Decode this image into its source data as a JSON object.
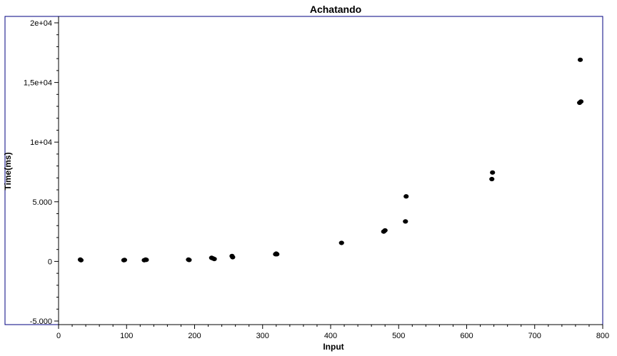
{
  "chart_data": {
    "type": "scatter",
    "title": "Achatando",
    "xlabel": "Input",
    "ylabel": "Time(ms)",
    "xlim": [
      0,
      800
    ],
    "ylim": [
      -5000,
      20000
    ],
    "x_ticks": [
      {
        "value": 0,
        "label": "0"
      },
      {
        "value": 100,
        "label": "100"
      },
      {
        "value": 200,
        "label": "200"
      },
      {
        "value": 300,
        "label": "300"
      },
      {
        "value": 400,
        "label": "400"
      },
      {
        "value": 500,
        "label": "500"
      },
      {
        "value": 600,
        "label": "600"
      },
      {
        "value": 700,
        "label": "700"
      },
      {
        "value": 800,
        "label": "800"
      }
    ],
    "y_ticks": [
      {
        "value": -5000,
        "label": "-5.000"
      },
      {
        "value": 0,
        "label": "0"
      },
      {
        "value": 5000,
        "label": "5.000"
      },
      {
        "value": 10000,
        "label": "1e+04"
      },
      {
        "value": 15000,
        "label": "1,5e+04"
      },
      {
        "value": 20000,
        "label": "2e+04"
      }
    ],
    "grid": false,
    "legend": false,
    "marker_color": "#000000",
    "axis_color": "#000080",
    "points": [
      {
        "x": 32,
        "y": 150
      },
      {
        "x": 33,
        "y": 100
      },
      {
        "x": 96,
        "y": 100
      },
      {
        "x": 97,
        "y": 120
      },
      {
        "x": 126,
        "y": 100
      },
      {
        "x": 128,
        "y": 150
      },
      {
        "x": 129,
        "y": 130
      },
      {
        "x": 191,
        "y": 150
      },
      {
        "x": 192,
        "y": 120
      },
      {
        "x": 225,
        "y": 300
      },
      {
        "x": 227,
        "y": 250
      },
      {
        "x": 229,
        "y": 200
      },
      {
        "x": 255,
        "y": 450
      },
      {
        "x": 256,
        "y": 350
      },
      {
        "x": 319,
        "y": 600
      },
      {
        "x": 320,
        "y": 650
      },
      {
        "x": 321,
        "y": 600
      },
      {
        "x": 416,
        "y": 1550
      },
      {
        "x": 478,
        "y": 2500
      },
      {
        "x": 480,
        "y": 2600
      },
      {
        "x": 510,
        "y": 3350
      },
      {
        "x": 511,
        "y": 5450
      },
      {
        "x": 637,
        "y": 6900
      },
      {
        "x": 638,
        "y": 7450
      },
      {
        "x": 766,
        "y": 13300
      },
      {
        "x": 767,
        "y": 16900
      },
      {
        "x": 768,
        "y": 13400
      }
    ]
  }
}
